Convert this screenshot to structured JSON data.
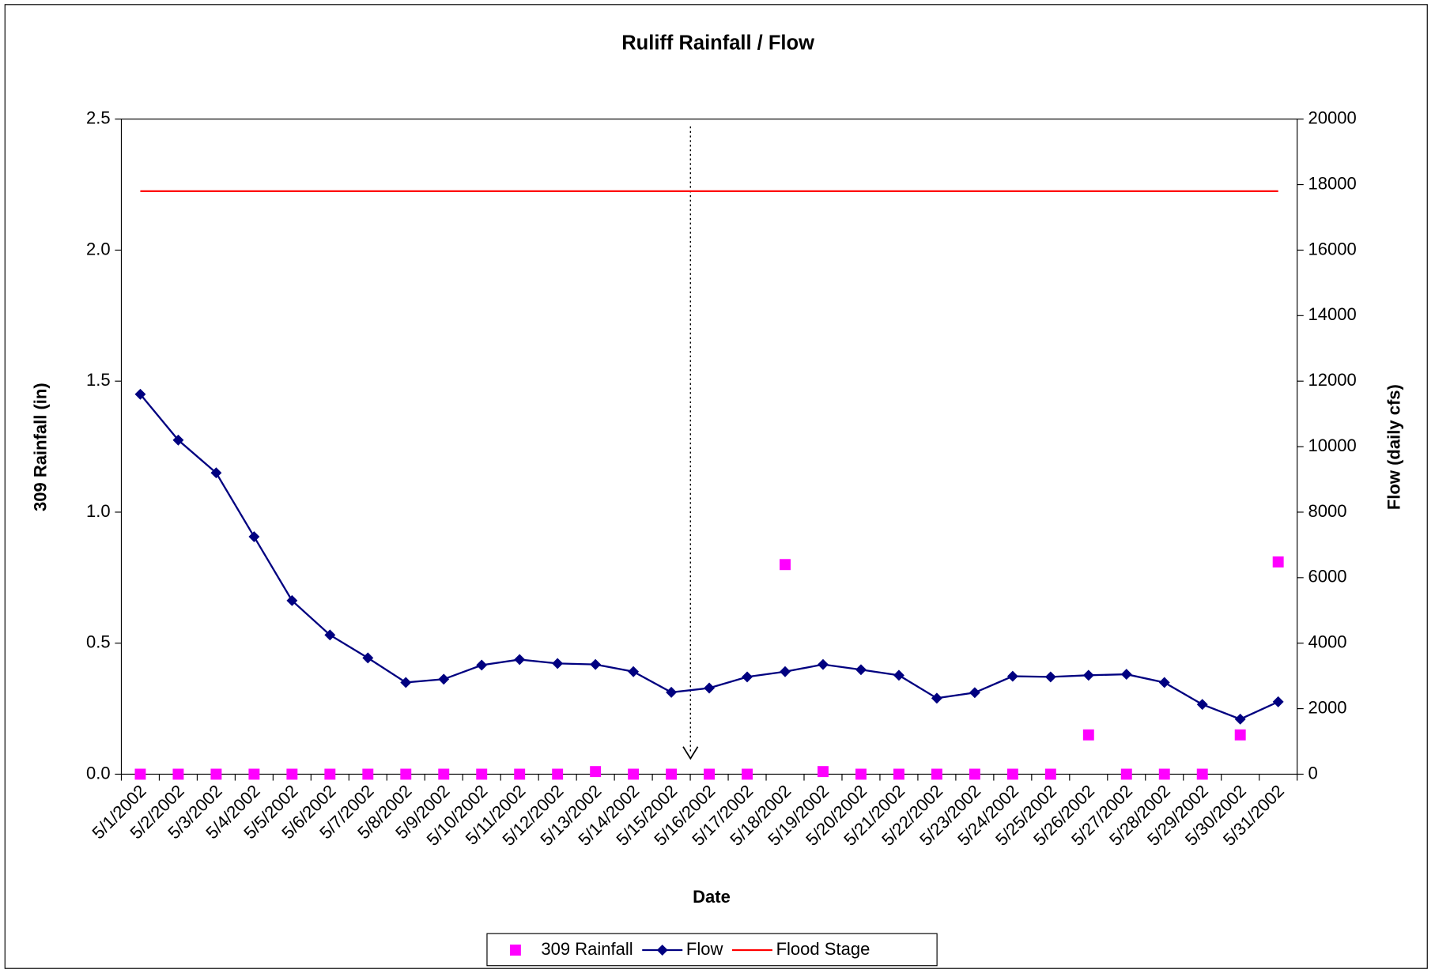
{
  "chart_data": {
    "type": "combo",
    "title": "Ruliff Rainfall / Flow",
    "x_label": "Date",
    "y_label": "309 Rainfall (in)",
    "y2_label": "Flow (daily cfs)",
    "categories": [
      "5/1/2002",
      "5/2/2002",
      "5/3/2002",
      "5/4/2002",
      "5/5/2002",
      "5/6/2002",
      "5/7/2002",
      "5/8/2002",
      "5/9/2002",
      "5/10/2002",
      "5/11/2002",
      "5/12/2002",
      "5/13/2002",
      "5/14/2002",
      "5/15/2002",
      "5/16/2002",
      "5/17/2002",
      "5/18/2002",
      "5/19/2002",
      "5/20/2002",
      "5/21/2002",
      "5/22/2002",
      "5/23/2002",
      "5/24/2002",
      "5/25/2002",
      "5/26/2002",
      "5/27/2002",
      "5/28/2002",
      "5/29/2002",
      "5/30/2002",
      "5/31/2002"
    ],
    "ylim": [
      0,
      2.5
    ],
    "yticks": [
      {
        "value": 0,
        "label": "0.0"
      },
      0.5,
      {
        "value": 1,
        "label": "1.0"
      },
      1.5,
      {
        "value": 2,
        "label": "2.0"
      },
      2.5
    ],
    "y2lim": [
      0,
      20000
    ],
    "y2ticks": [
      0,
      2000,
      4000,
      6000,
      8000,
      10000,
      12000,
      14000,
      16000,
      18000,
      20000
    ],
    "legend": "bottom",
    "series": [
      {
        "name": "309 Rainfall",
        "color": "#ff00ff",
        "kind": "scatter",
        "values": [
          0,
          0,
          0,
          0,
          0,
          0,
          0,
          0,
          0,
          0,
          0,
          0,
          0.01,
          0,
          0,
          0,
          0,
          0.8,
          0.01,
          0,
          0,
          0,
          0,
          0,
          0,
          0.15,
          0,
          0,
          0,
          0.15,
          0.81
        ]
      },
      {
        "name": "Flow",
        "color": "#000080",
        "kind": "line",
        "axis": "y2",
        "values": [
          11600,
          10200,
          9200,
          7250,
          5300,
          4250,
          3550,
          2800,
          2900,
          3330,
          3500,
          3380,
          3350,
          3130,
          2500,
          2630,
          2970,
          3130,
          3350,
          3190,
          3020,
          2320,
          2490,
          2990,
          2970,
          3020,
          3050,
          2800,
          2130,
          1680,
          2210
        ]
      },
      {
        "name": "Flood Stage",
        "color": "#ff0000",
        "kind": "line",
        "axis": "y2",
        "values": [
          17800,
          17800,
          17800,
          17800,
          17800,
          17800,
          17800,
          17800,
          17800,
          17800,
          17800,
          17800,
          17800,
          17800,
          17800,
          17800,
          17800,
          17800,
          17800,
          17800,
          17800,
          17800,
          17800,
          17800,
          17800,
          17800,
          17800,
          17800,
          17800,
          17800,
          17800
        ]
      }
    ]
  }
}
